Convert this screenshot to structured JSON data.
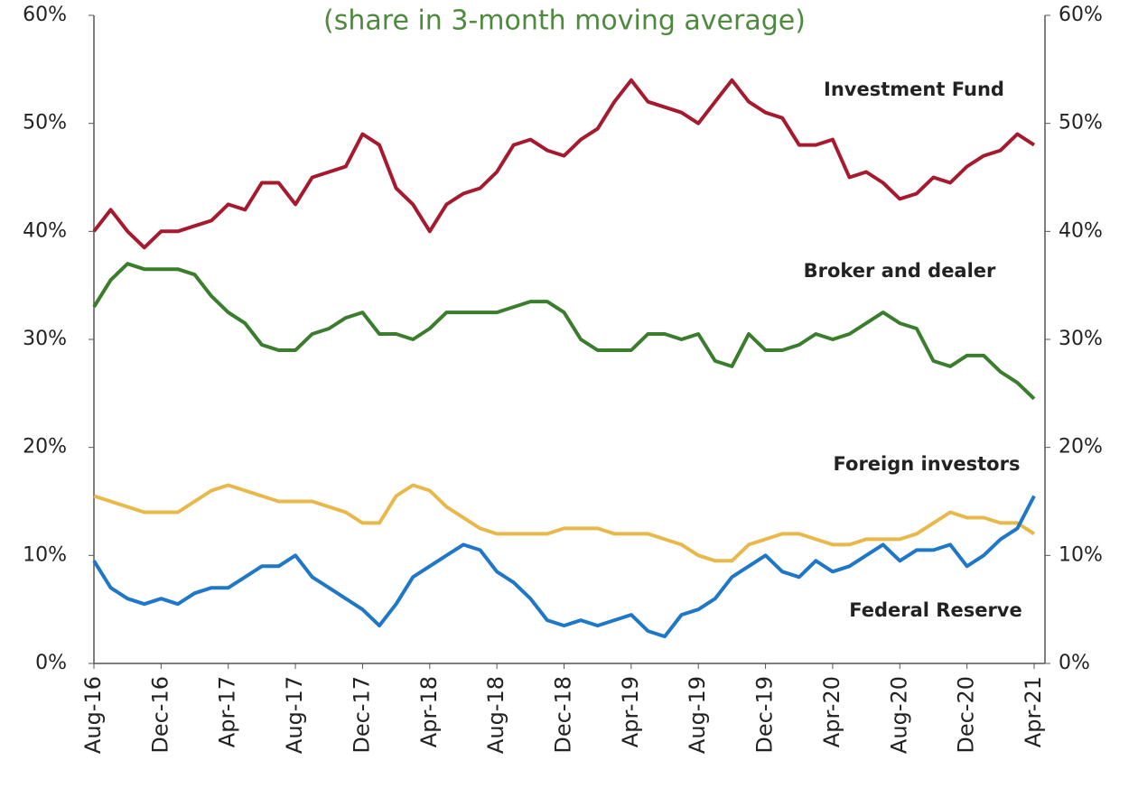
{
  "chart_data": {
    "type": "line",
    "subtitle": "(share in 3-month moving average)",
    "x": [
      0,
      1,
      2,
      3,
      4,
      5,
      6,
      7,
      8,
      9,
      10,
      11,
      12,
      13,
      14,
      15,
      16,
      17,
      18,
      19,
      20,
      21,
      22,
      23,
      24,
      25,
      26,
      27,
      28,
      29,
      30,
      31,
      32,
      33,
      34,
      35,
      36,
      37,
      38,
      39,
      40,
      41,
      42,
      43,
      44,
      45,
      46,
      47,
      48,
      49,
      50,
      51,
      52,
      53,
      54,
      55,
      56
    ],
    "xlim": [
      0,
      56
    ],
    "xticks": [
      {
        "value": 0,
        "label": "Aug-16"
      },
      {
        "value": 4,
        "label": "Dec-16"
      },
      {
        "value": 8,
        "label": "Apr-17"
      },
      {
        "value": 12,
        "label": "Aug-17"
      },
      {
        "value": 16,
        "label": "Dec-17"
      },
      {
        "value": 20,
        "label": "Apr-18"
      },
      {
        "value": 24,
        "label": "Aug-18"
      },
      {
        "value": 28,
        "label": "Dec-18"
      },
      {
        "value": 32,
        "label": "Apr-19"
      },
      {
        "value": 36,
        "label": "Aug-19"
      },
      {
        "value": 40,
        "label": "Dec-19"
      },
      {
        "value": 44,
        "label": "Apr-20"
      },
      {
        "value": 48,
        "label": "Aug-20"
      },
      {
        "value": 52,
        "label": "Dec-20"
      },
      {
        "value": 56,
        "label": "Apr-21"
      }
    ],
    "ylim": [
      0,
      60
    ],
    "yticks": [
      {
        "value": 0,
        "label": "0%"
      },
      {
        "value": 10,
        "label": "10%"
      },
      {
        "value": 20,
        "label": "20%"
      },
      {
        "value": 30,
        "label": "30%"
      },
      {
        "value": 40,
        "label": "40%"
      },
      {
        "value": 50,
        "label": "50%"
      },
      {
        "value": 60,
        "label": "60%"
      }
    ],
    "y2lim": [
      0,
      60
    ],
    "y2ticks": [
      {
        "value": 0,
        "label": "0%"
      },
      {
        "value": 10,
        "label": "10%"
      },
      {
        "value": 20,
        "label": "20%"
      },
      {
        "value": 30,
        "label": "30%"
      },
      {
        "value": 40,
        "label": "40%"
      },
      {
        "value": 50,
        "label": "50%"
      },
      {
        "value": 60,
        "label": "60%"
      }
    ],
    "grid": false,
    "series": [
      {
        "name": "Investment Fund",
        "color": "#a6192e",
        "values": [
          40,
          42,
          40,
          38.5,
          40,
          40,
          40.5,
          41,
          42.5,
          42,
          44.5,
          44.5,
          42.5,
          45,
          45.5,
          46,
          49,
          48,
          44,
          42.5,
          40,
          42.5,
          43.5,
          44,
          45.5,
          48,
          48.5,
          47.5,
          47,
          48.5,
          49.5,
          52,
          54,
          52,
          51.5,
          51,
          50,
          52,
          54,
          52,
          51,
          50.5,
          48,
          48,
          48.5,
          45,
          45.5,
          44.5,
          43,
          43.5,
          45,
          44.5,
          46,
          47,
          47.5,
          49,
          48
        ]
      },
      {
        "name": "Broker and dealer",
        "color": "#3a7d2c",
        "values": [
          33,
          35.5,
          37,
          36.5,
          36.5,
          36.5,
          36,
          34,
          32.5,
          31.5,
          29.5,
          29,
          29,
          30.5,
          31,
          32,
          32.5,
          30.5,
          30.5,
          30,
          31,
          32.5,
          32.5,
          32.5,
          32.5,
          33,
          33.5,
          33.5,
          32.5,
          30,
          29,
          29,
          29,
          30.5,
          30.5,
          30,
          30.5,
          28,
          27.5,
          30.5,
          29,
          29,
          29.5,
          30.5,
          30,
          30.5,
          31.5,
          32.5,
          31.5,
          31,
          28,
          27.5,
          28.5,
          28.5,
          27,
          26,
          24.5
        ]
      },
      {
        "name": "Foreign investors",
        "color": "#e8b84a",
        "values": [
          15.5,
          15,
          14.5,
          14,
          14,
          14,
          15,
          16,
          16.5,
          16,
          15.5,
          15,
          15,
          15,
          14.5,
          14,
          13,
          13,
          15.5,
          16.5,
          16,
          14.5,
          13.5,
          12.5,
          12,
          12,
          12,
          12,
          12.5,
          12.5,
          12.5,
          12,
          12,
          12,
          11.5,
          11,
          10,
          9.5,
          9.5,
          11,
          11.5,
          12,
          12,
          11.5,
          11,
          11,
          11.5,
          11.5,
          11.5,
          12,
          13,
          14,
          13.5,
          13.5,
          13,
          13,
          12
        ]
      },
      {
        "name": "Federal Reserve",
        "color": "#1f77c9",
        "values": [
          9.5,
          7,
          6,
          5.5,
          6,
          5.5,
          6.5,
          7,
          7,
          8,
          9,
          9,
          10,
          8,
          7,
          6,
          5,
          3.5,
          5.5,
          8,
          9,
          10,
          11,
          10.5,
          8.5,
          7.5,
          6,
          4,
          3.5,
          4,
          3.5,
          4,
          4.5,
          3,
          2.5,
          4.5,
          5,
          6,
          8,
          9,
          10,
          8.5,
          8,
          9.5,
          8.5,
          9,
          10,
          11,
          9.5,
          10.5,
          10.5,
          11,
          9,
          10,
          11.5,
          12.5,
          15.5
        ]
      }
    ]
  }
}
